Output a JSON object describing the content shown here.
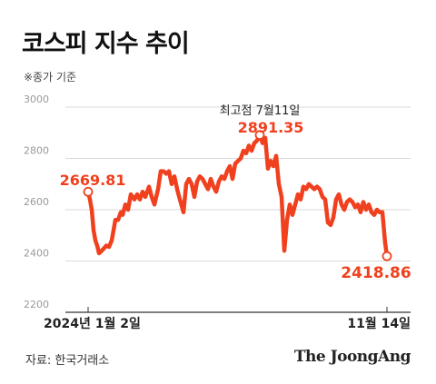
{
  "header": {
    "title": "코스피 지수 추이",
    "subtitle": "※종가 기준"
  },
  "footer": {
    "source": "자료: 한국거래소",
    "brand": "The JoongAng"
  },
  "colors": {
    "line": "#f0401e",
    "grid": "#d9d9d9",
    "axis": "#333333",
    "tick": "#999999"
  },
  "chart_data": {
    "type": "line",
    "title": "코스피 지수 추이",
    "subtitle": "※종가 기준",
    "ylim": [
      2200,
      3000
    ],
    "yticks": [
      "3000",
      "2800",
      "2600",
      "2400",
      "2200"
    ],
    "x_labels": {
      "start": "2024년 1월 2일",
      "end": "11월 14일"
    },
    "grid": true,
    "annotations": {
      "start": {
        "value": "2669.81"
      },
      "peak": {
        "label": "최고점 7월11일",
        "value": "2891.35"
      },
      "end": {
        "value": "2418.86"
      }
    },
    "series": [
      {
        "x": [
          0,
          2,
          4,
          5,
          6,
          8,
          10,
          12,
          15,
          20,
          23,
          26,
          30,
          33,
          36,
          38,
          41,
          44,
          47,
          51,
          54,
          57,
          60,
          63,
          67,
          70,
          73,
          77,
          80,
          83,
          86,
          89,
          92,
          95,
          98,
          101,
          105,
          108,
          111,
          114,
          117,
          120,
          123,
          126,
          129,
          132,
          135,
          138,
          141,
          144,
          147,
          150,
          153,
          156,
          159,
          162,
          165,
          168,
          171,
          174,
          177,
          180,
          183,
          186,
          189,
          192,
          195,
          198,
          201,
          204,
          207,
          210,
          213,
          216,
          219,
          222,
          225,
          228,
          231,
          234,
          237,
          240,
          243,
          246,
          249,
          252,
          255,
          258,
          261,
          264,
          267,
          270,
          273,
          276,
          279,
          282,
          285,
          288,
          291,
          294,
          297,
          300,
          303,
          306,
          309,
          312,
          315,
          318,
          321,
          324,
          327,
          329
        ],
        "values": [
          2669.81,
          2640,
          2600,
          2560,
          2520,
          2480,
          2460,
          2430,
          2440,
          2460,
          2455,
          2480,
          2560,
          2560,
          2590,
          2580,
          2620,
          2600,
          2660,
          2640,
          2660,
          2640,
          2670,
          2650,
          2690,
          2650,
          2620,
          2680,
          2750,
          2750,
          2740,
          2750,
          2700,
          2730,
          2680,
          2640,
          2590,
          2700,
          2720,
          2700,
          2650,
          2710,
          2730,
          2720,
          2700,
          2680,
          2720,
          2690,
          2670,
          2710,
          2730,
          2720,
          2750,
          2770,
          2720,
          2780,
          2790,
          2800,
          2830,
          2820,
          2850,
          2830,
          2860,
          2870,
          2891.35,
          2860,
          2880,
          2760,
          2790,
          2770,
          2810,
          2700,
          2650,
          2440,
          2560,
          2620,
          2580,
          2620,
          2660,
          2640,
          2690,
          2680,
          2700,
          2690,
          2680,
          2690,
          2680,
          2650,
          2640,
          2550,
          2540,
          2570,
          2640,
          2660,
          2620,
          2600,
          2630,
          2640,
          2630,
          2610,
          2620,
          2590,
          2630,
          2600,
          2620,
          2590,
          2580,
          2600,
          2590,
          2590,
          2470,
          2418.86
        ]
      }
    ]
  }
}
